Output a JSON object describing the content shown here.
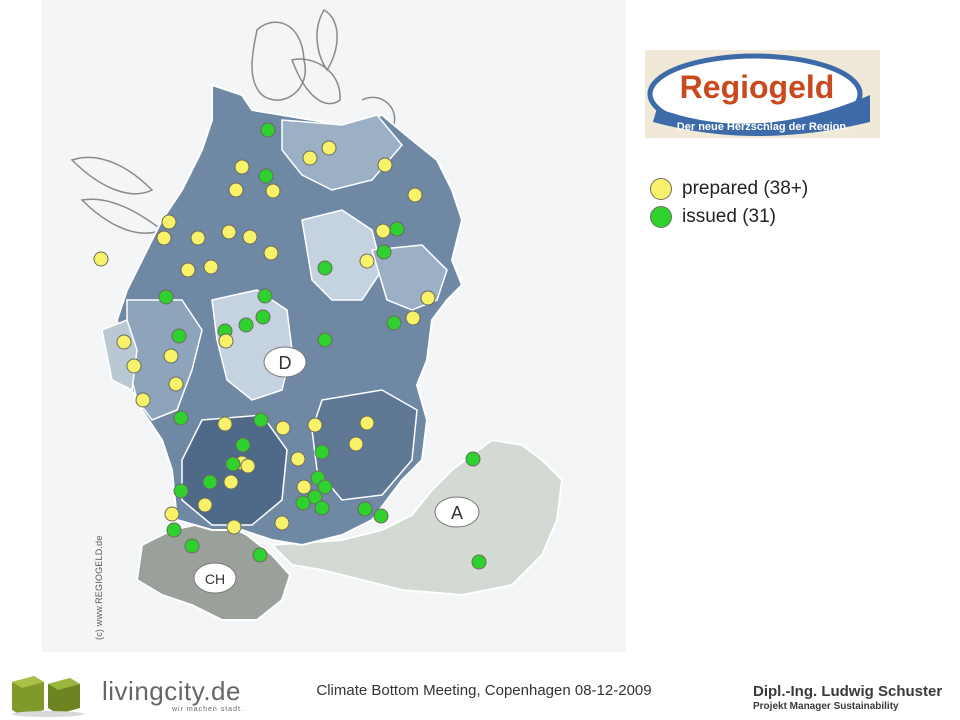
{
  "map": {
    "copyright": "(c) www.REGIOGELD.de",
    "country_labels": {
      "de": "D",
      "at": "A",
      "ch": "CH"
    },
    "colors": {
      "prepared": "#f7f26a",
      "issued": "#2fd12f",
      "region_dark": "#6f88a4",
      "region_mid": "#9bb0c4",
      "region_light": "#c4d3df",
      "austria": "#d3d9d3",
      "switzerland": "#9aa09a"
    }
  },
  "logo": {
    "name": "Regiogeld",
    "slogan": "Der neue Herzschlag der Region."
  },
  "legend": {
    "prepared_label": "prepared (38+)",
    "issued_label": "issued (31)"
  },
  "footer": {
    "brand": "livingcity.de",
    "tagline": "wir machen stadt.",
    "meeting": "Climate Bottom Meeting, Copenhagen 08-12-2009",
    "author_name": "Dipl.-Ing. Ludwig Schuster",
    "author_role": "Projekt Manager Sustainability"
  }
}
